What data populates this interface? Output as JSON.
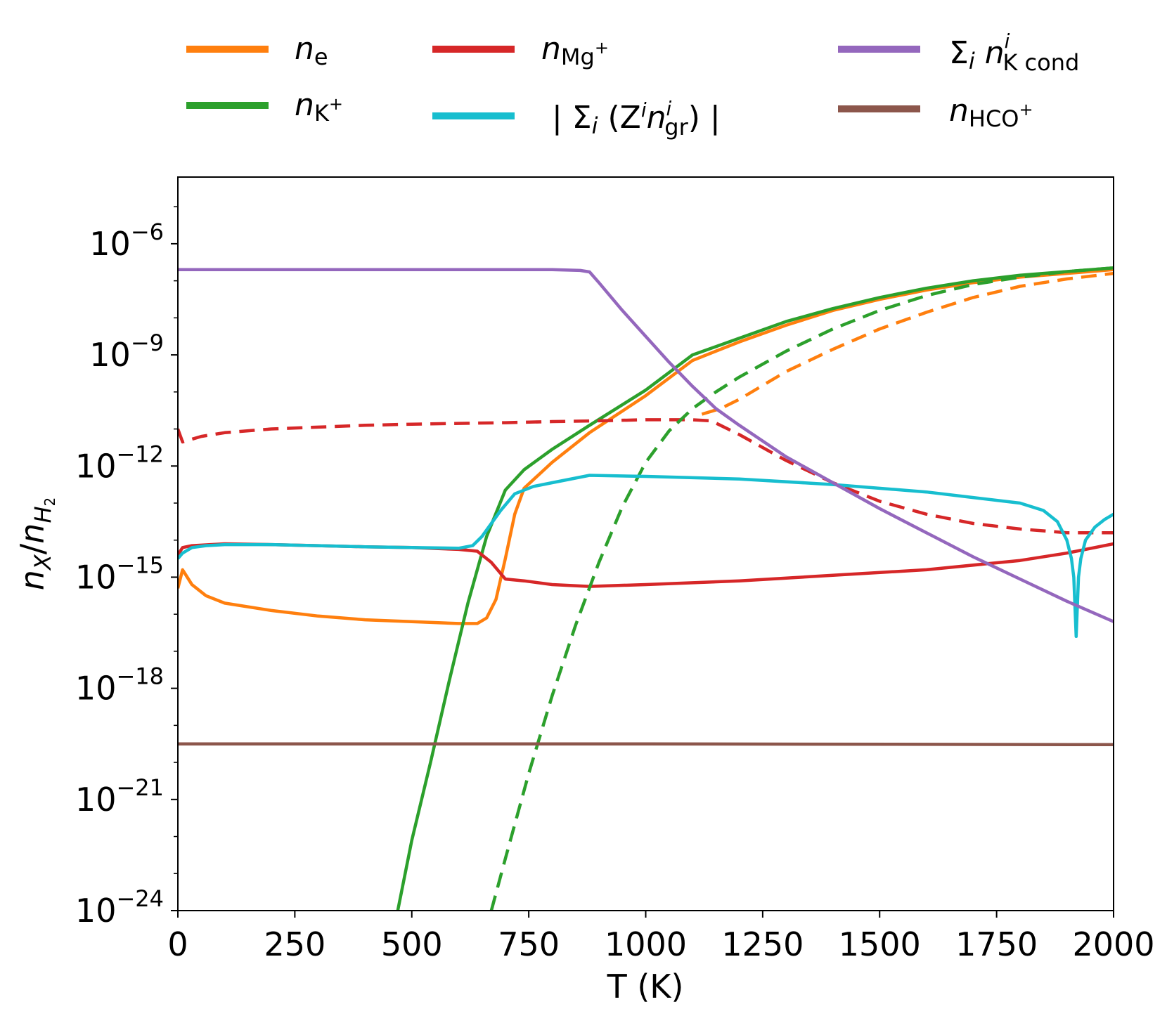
{
  "chart_data": {
    "type": "line",
    "y_scale": "log",
    "xlabel": "T (K)",
    "ylabel_base": "n",
    "ylabel_sub": "X",
    "ylabel_slash": "/",
    "ylabel_denom_base": "n",
    "ylabel_denom_sub": "H",
    "ylabel_denom_subsub": "2",
    "xlim": [
      0,
      2000
    ],
    "ylim_log10": [
      -24,
      -4.2
    ],
    "x_ticks": [
      0,
      250,
      500,
      750,
      1000,
      1250,
      1500,
      1750,
      2000
    ],
    "x_tick_labels": [
      "0",
      "250",
      "500",
      "750",
      "1000",
      "1250",
      "1500",
      "1750",
      "2000"
    ],
    "y_ticks_log10": [
      -24,
      -21,
      -18,
      -15,
      -12,
      -9,
      -6
    ],
    "y_tick_base": "10",
    "y_tick_exponents": [
      "−24",
      "−21",
      "−18",
      "−15",
      "−12",
      "−9",
      "−6"
    ],
    "legend": [
      {
        "key": "ne",
        "color": "#ff7f0e",
        "base": "n",
        "sub": "e"
      },
      {
        "key": "nK",
        "color": "#2ca02c",
        "base": "n",
        "sub": "K",
        "sup": "+"
      },
      {
        "key": "nMg",
        "color": "#d62728",
        "base": "n",
        "sub": "Mg",
        "sup": "+"
      },
      {
        "key": "ngr",
        "color": "#17becf",
        "text_a": "| Σ",
        "text_i": "i",
        "text_b": " (Z",
        "text_sup": "i",
        "text_c": "n",
        "text_sup2": "i",
        "text_sub": "gr",
        "text_d": ") |"
      },
      {
        "key": "nKcond",
        "color": "#9467bd",
        "text_a": "Σ",
        "text_i": "i",
        "text_c": " n",
        "text_sup": "i",
        "text_sub": "K cond"
      },
      {
        "key": "nHCO",
        "color": "#8c564b",
        "base": "n",
        "sub": "HCO",
        "sup": "+"
      }
    ],
    "series": [
      {
        "name": "n_e",
        "color": "#ff7f0e",
        "style": "solid",
        "x": [
          0,
          10,
          30,
          60,
          100,
          200,
          300,
          400,
          500,
          600,
          640,
          660,
          680,
          700,
          720,
          740,
          800,
          880,
          1000,
          1100,
          1200,
          1300,
          1400,
          1500,
          1600,
          1700,
          1800,
          1900,
          2000
        ],
        "y": [
          -15.3,
          -14.8,
          -15.2,
          -15.5,
          -15.7,
          -15.9,
          -16.05,
          -16.15,
          -16.2,
          -16.25,
          -16.25,
          -16.1,
          -15.6,
          -14.5,
          -13.3,
          -12.6,
          -11.9,
          -11.1,
          -10.1,
          -9.15,
          -8.65,
          -8.2,
          -7.8,
          -7.5,
          -7.25,
          -7.05,
          -6.9,
          -6.8,
          -6.7
        ]
      },
      {
        "name": "n_K+",
        "color": "#2ca02c",
        "style": "solid",
        "x": [
          470,
          500,
          540,
          580,
          620,
          660,
          700,
          740,
          800,
          880,
          1000,
          1100,
          1200,
          1300,
          1400,
          1500,
          1600,
          1700,
          1800,
          1900,
          2000
        ],
        "y": [
          -24,
          -22.1,
          -20.0,
          -17.8,
          -15.7,
          -13.9,
          -12.65,
          -12.1,
          -11.55,
          -10.9,
          -9.95,
          -9.0,
          -8.55,
          -8.1,
          -7.75,
          -7.45,
          -7.2,
          -7.0,
          -6.85,
          -6.75,
          -6.65
        ]
      },
      {
        "name": "n_Mg+",
        "color": "#d62728",
        "style": "solid",
        "x": [
          0,
          10,
          30,
          100,
          200,
          300,
          400,
          500,
          600,
          640,
          670,
          700,
          740,
          800,
          880,
          1000,
          1200,
          1400,
          1600,
          1800,
          1900,
          2000
        ],
        "y": [
          -14.4,
          -14.2,
          -14.15,
          -14.1,
          -14.12,
          -14.15,
          -14.18,
          -14.2,
          -14.25,
          -14.3,
          -14.6,
          -15.05,
          -15.1,
          -15.2,
          -15.25,
          -15.2,
          -15.1,
          -14.95,
          -14.8,
          -14.55,
          -14.35,
          -14.1
        ]
      },
      {
        "name": "n_Mg+ (dashed)",
        "color": "#d62728",
        "style": "dashed",
        "x": [
          0,
          10,
          50,
          100,
          200,
          300,
          400,
          500,
          600,
          700,
          800,
          900,
          1000,
          1100,
          1140,
          1200,
          1300,
          1400,
          1500,
          1600,
          1700,
          1800,
          1900,
          2000
        ],
        "y": [
          -11.0,
          -11.35,
          -11.2,
          -11.1,
          -11.0,
          -10.95,
          -10.9,
          -10.87,
          -10.85,
          -10.83,
          -10.8,
          -10.78,
          -10.75,
          -10.75,
          -10.78,
          -11.15,
          -11.85,
          -12.45,
          -12.95,
          -13.3,
          -13.55,
          -13.7,
          -13.8,
          -13.8
        ]
      },
      {
        "name": "n_e (dashed)",
        "color": "#ff7f0e",
        "style": "dashed",
        "x": [
          1120,
          1160,
          1200,
          1300,
          1400,
          1500,
          1600,
          1700,
          1800,
          1900,
          2000
        ],
        "y": [
          -10.6,
          -10.45,
          -10.2,
          -9.45,
          -8.85,
          -8.3,
          -7.85,
          -7.45,
          -7.15,
          -6.95,
          -6.8
        ]
      },
      {
        "name": "n_K+ (dashed)",
        "color": "#2ca02c",
        "style": "dashed",
        "x": [
          670,
          700,
          750,
          800,
          850,
          900,
          950,
          1000,
          1050,
          1100,
          1150,
          1200,
          1300,
          1400,
          1500,
          1600,
          1700,
          1800,
          1900,
          2000
        ],
        "y": [
          -24,
          -22.6,
          -20.3,
          -18.2,
          -16.3,
          -14.6,
          -13.1,
          -11.9,
          -11.05,
          -10.45,
          -10.0,
          -9.6,
          -8.9,
          -8.3,
          -7.8,
          -7.4,
          -7.1,
          -6.9,
          -6.75,
          -6.65
        ]
      },
      {
        "name": "|Σ Z n_gr|",
        "color": "#17becf",
        "style": "solid",
        "x": [
          0,
          10,
          30,
          60,
          100,
          200,
          300,
          400,
          500,
          600,
          630,
          650,
          670,
          690,
          720,
          760,
          800,
          880,
          1000,
          1200,
          1400,
          1600,
          1700,
          1800,
          1850,
          1880,
          1900,
          1910,
          1915,
          1920,
          1925,
          1930,
          1940,
          1960,
          1980,
          2000
        ],
        "y": [
          -14.5,
          -14.35,
          -14.2,
          -14.15,
          -14.12,
          -14.12,
          -14.15,
          -14.18,
          -14.2,
          -14.22,
          -14.15,
          -13.9,
          -13.55,
          -13.2,
          -12.75,
          -12.55,
          -12.45,
          -12.25,
          -12.28,
          -12.35,
          -12.5,
          -12.7,
          -12.85,
          -13.0,
          -13.2,
          -13.5,
          -14.0,
          -14.5,
          -15.0,
          -16.6,
          -15.0,
          -14.5,
          -14.0,
          -13.65,
          -13.45,
          -13.3
        ]
      },
      {
        "name": "Σ n_K cond",
        "color": "#9467bd",
        "style": "solid",
        "x": [
          0,
          200,
          400,
          600,
          800,
          860,
          880,
          900,
          950,
          1000,
          1050,
          1100,
          1150,
          1200,
          1300,
          1400,
          1500,
          1600,
          1700,
          1800,
          1900,
          2000
        ],
        "y": [
          -6.7,
          -6.7,
          -6.7,
          -6.7,
          -6.7,
          -6.72,
          -6.76,
          -7.05,
          -7.8,
          -8.5,
          -9.2,
          -9.85,
          -10.45,
          -10.9,
          -11.75,
          -12.45,
          -13.15,
          -13.8,
          -14.45,
          -15.05,
          -15.65,
          -16.2
        ]
      },
      {
        "name": "n_HCO+",
        "color": "#8c564b",
        "style": "solid",
        "x": [
          0,
          1000,
          2000
        ],
        "y": [
          -19.5,
          -19.5,
          -19.52
        ]
      }
    ]
  }
}
